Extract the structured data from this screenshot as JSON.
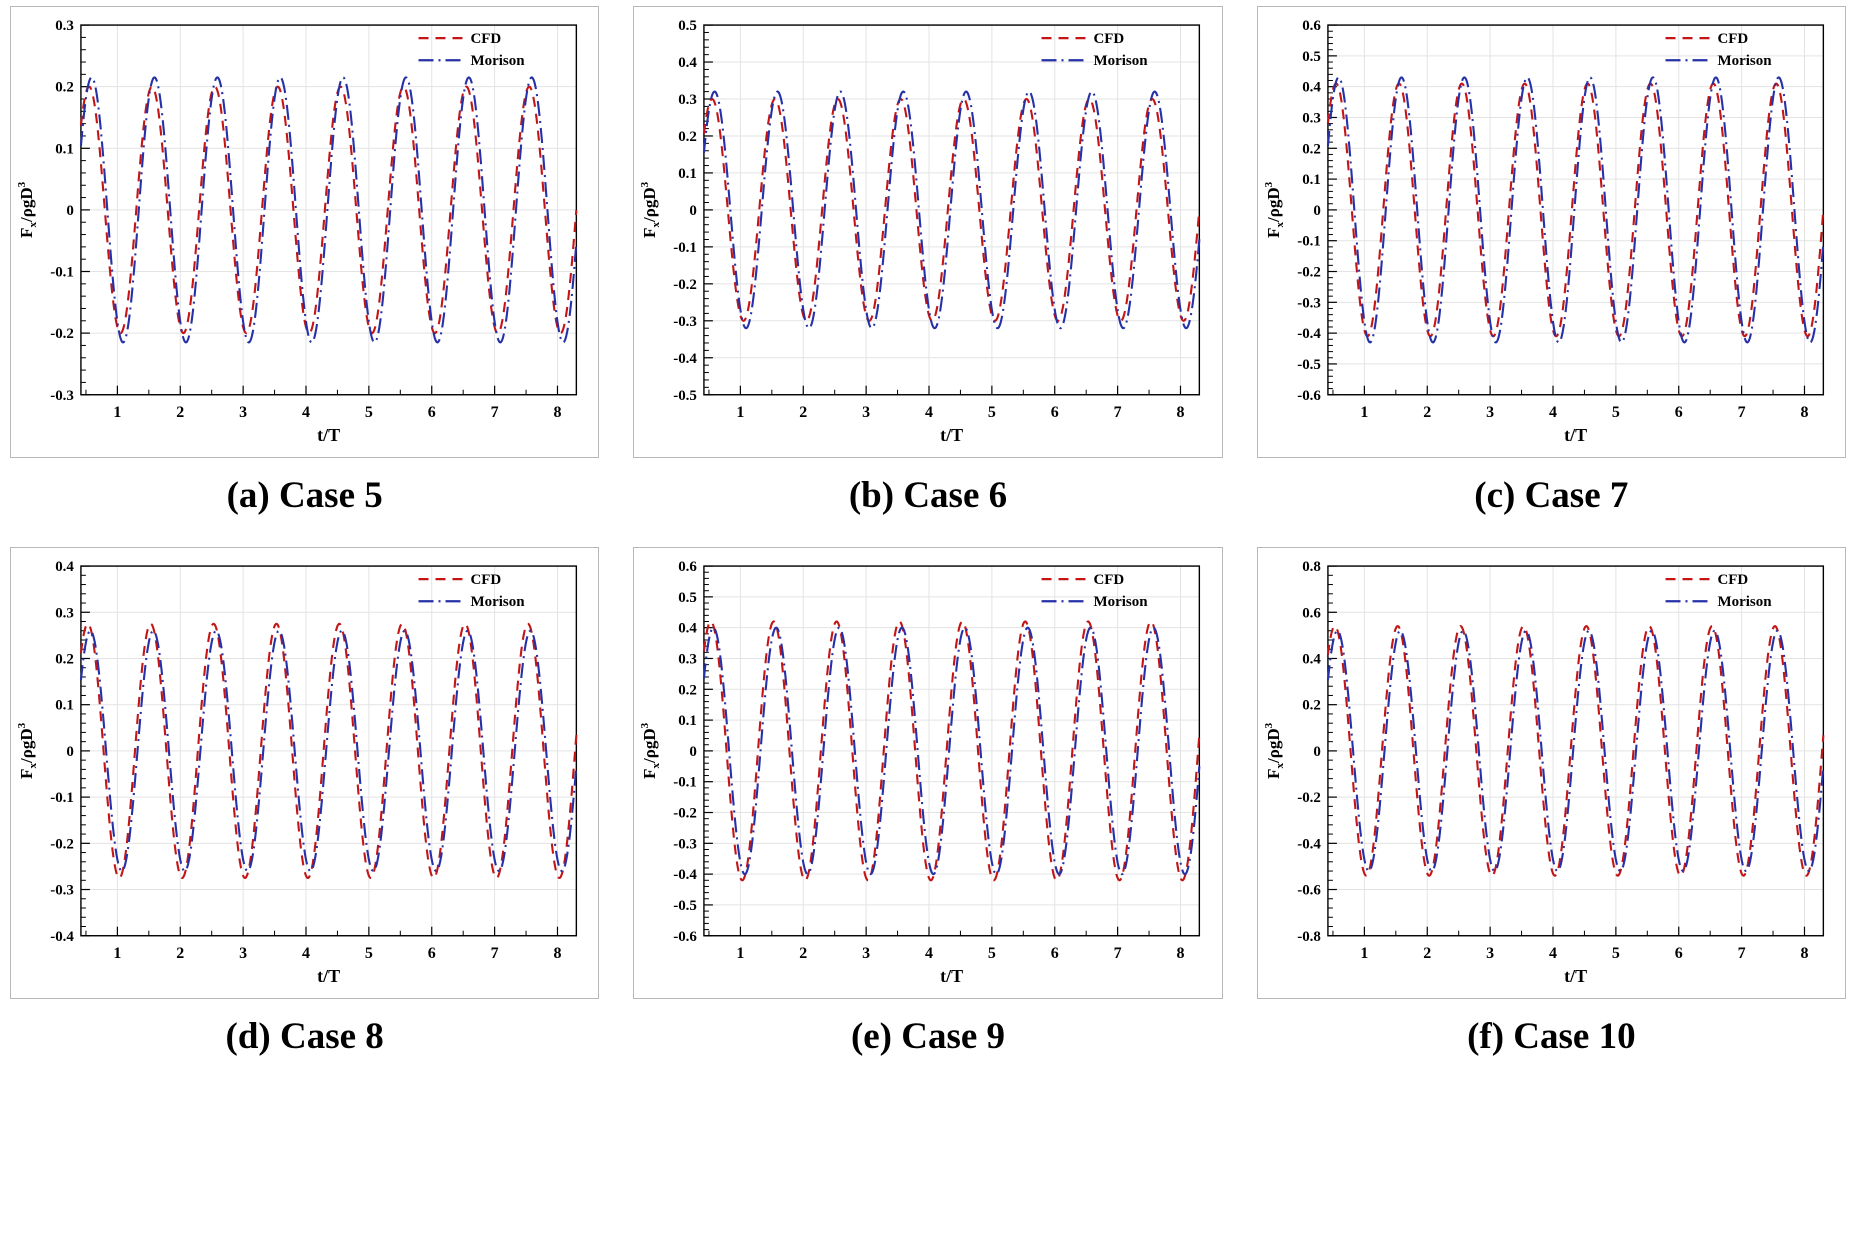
{
  "page": {
    "background": "#ffffff"
  },
  "colors": {
    "cfd": "#c41414",
    "morison": "#2531a8",
    "grid": "#e3e3e3",
    "axis": "#000000",
    "box_border": "#b8b8b8"
  },
  "ylabel_parts": {
    "base": "F",
    "sub": "x",
    "mid": "/ρgD",
    "sup": "3"
  },
  "chart_data": [
    {
      "id": "a",
      "caption": "(a) Case 5",
      "type": "line",
      "xlabel": "t/T",
      "ylabel": "Fx/ρgD3",
      "xlim": [
        0.42,
        8.3
      ],
      "xticks": [
        1,
        2,
        3,
        4,
        5,
        6,
        7,
        8
      ],
      "xminor_step": 0.5,
      "ylim": [
        -0.3,
        0.3
      ],
      "ytick_step": 0.1,
      "yminor_div": 5,
      "legend_position": "top-right",
      "grid": true,
      "period": 1,
      "series": [
        {
          "name": "CFD",
          "color": "#c41414",
          "style": "dashed",
          "amplitude": 0.2,
          "phase": 0.3
        },
        {
          "name": "Morison",
          "color": "#2531a8",
          "style": "dashdot",
          "amplitude": 0.215,
          "phase": 0.34
        }
      ]
    },
    {
      "id": "b",
      "caption": "(b) Case 6",
      "type": "line",
      "xlabel": "t/T",
      "ylabel": "Fx/ρgD3",
      "xlim": [
        0.42,
        8.3
      ],
      "xticks": [
        1,
        2,
        3,
        4,
        5,
        6,
        7,
        8
      ],
      "xminor_step": 0.5,
      "ylim": [
        -0.5,
        0.5
      ],
      "ytick_step": 0.1,
      "yminor_div": 5,
      "legend_position": "top-right",
      "grid": true,
      "period": 1,
      "series": [
        {
          "name": "CFD",
          "color": "#c41414",
          "style": "dashed",
          "amplitude": 0.3,
          "phase": 0.3
        },
        {
          "name": "Morison",
          "color": "#2531a8",
          "style": "dashdot",
          "amplitude": 0.32,
          "phase": 0.34
        }
      ]
    },
    {
      "id": "c",
      "caption": "(c) Case 7",
      "type": "line",
      "xlabel": "t/T",
      "ylabel": "Fx/ρgD3",
      "xlim": [
        0.42,
        8.3
      ],
      "xticks": [
        1,
        2,
        3,
        4,
        5,
        6,
        7,
        8
      ],
      "xminor_step": 0.5,
      "ylim": [
        -0.6,
        0.6
      ],
      "ytick_step": 0.1,
      "yminor_div": 5,
      "legend_position": "top-right",
      "grid": true,
      "period": 1,
      "series": [
        {
          "name": "CFD",
          "color": "#c41414",
          "style": "dashed",
          "amplitude": 0.41,
          "phase": 0.3
        },
        {
          "name": "Morison",
          "color": "#2531a8",
          "style": "dashdot",
          "amplitude": 0.43,
          "phase": 0.34
        }
      ]
    },
    {
      "id": "d",
      "caption": "(d) Case 8",
      "type": "line",
      "xlabel": "t/T",
      "ylabel": "Fx/ρgD3",
      "xlim": [
        0.42,
        8.3
      ],
      "xticks": [
        1,
        2,
        3,
        4,
        5,
        6,
        7,
        8
      ],
      "xminor_step": 0.5,
      "ylim": [
        -0.4,
        0.4
      ],
      "ytick_step": 0.1,
      "yminor_div": 5,
      "legend_position": "top-right",
      "grid": true,
      "period": 1,
      "series": [
        {
          "name": "CFD",
          "color": "#c41414",
          "style": "dashed",
          "amplitude": 0.275,
          "phase": 0.28
        },
        {
          "name": "Morison",
          "color": "#2531a8",
          "style": "dashdot",
          "amplitude": 0.26,
          "phase": 0.32
        }
      ]
    },
    {
      "id": "e",
      "caption": "(e) Case 9",
      "type": "line",
      "xlabel": "t/T",
      "ylabel": "Fx/ρgD3",
      "xlim": [
        0.42,
        8.3
      ],
      "xticks": [
        1,
        2,
        3,
        4,
        5,
        6,
        7,
        8
      ],
      "xminor_step": 0.5,
      "ylim": [
        -0.6,
        0.6
      ],
      "ytick_step": 0.1,
      "yminor_div": 5,
      "legend_position": "top-right",
      "grid": true,
      "period": 1,
      "series": [
        {
          "name": "CFD",
          "color": "#c41414",
          "style": "dashed",
          "amplitude": 0.42,
          "phase": 0.28
        },
        {
          "name": "Morison",
          "color": "#2531a8",
          "style": "dashdot",
          "amplitude": 0.4,
          "phase": 0.32
        }
      ]
    },
    {
      "id": "f",
      "caption": "(f) Case 10",
      "type": "line",
      "xlabel": "t/T",
      "ylabel": "Fx/ρgD3",
      "xlim": [
        0.42,
        8.3
      ],
      "xticks": [
        1,
        2,
        3,
        4,
        5,
        6,
        7,
        8
      ],
      "xminor_step": 0.5,
      "ylim": [
        -0.8,
        0.8
      ],
      "ytick_step": 0.2,
      "yminor_div": 5,
      "legend_position": "top-right",
      "grid": true,
      "period": 1,
      "series": [
        {
          "name": "CFD",
          "color": "#c41414",
          "style": "dashed",
          "amplitude": 0.54,
          "phase": 0.28
        },
        {
          "name": "Morison",
          "color": "#2531a8",
          "style": "dashdot",
          "amplitude": 0.52,
          "phase": 0.32
        }
      ]
    }
  ]
}
